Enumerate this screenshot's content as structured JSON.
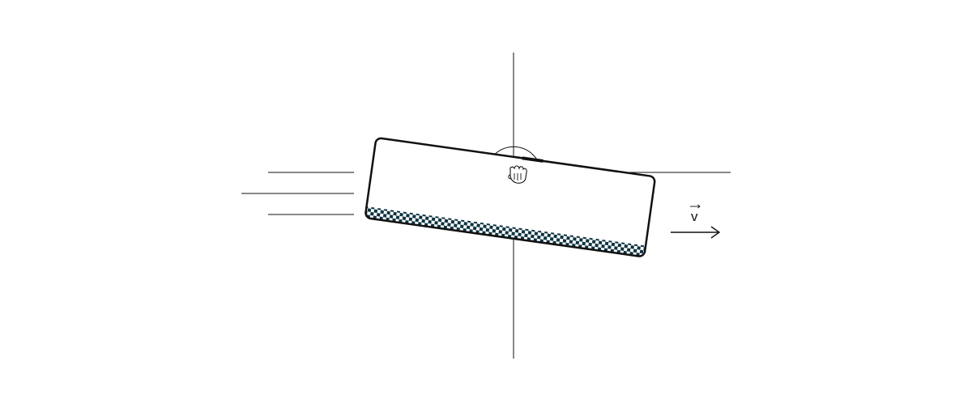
{
  "diagram": {
    "velocity_label": "v",
    "colors": {
      "line": "#111111",
      "liquid_dark": "#0d3340",
      "background": "#ffffff"
    },
    "icons": {
      "pivot": "hand-grip-icon"
    }
  }
}
